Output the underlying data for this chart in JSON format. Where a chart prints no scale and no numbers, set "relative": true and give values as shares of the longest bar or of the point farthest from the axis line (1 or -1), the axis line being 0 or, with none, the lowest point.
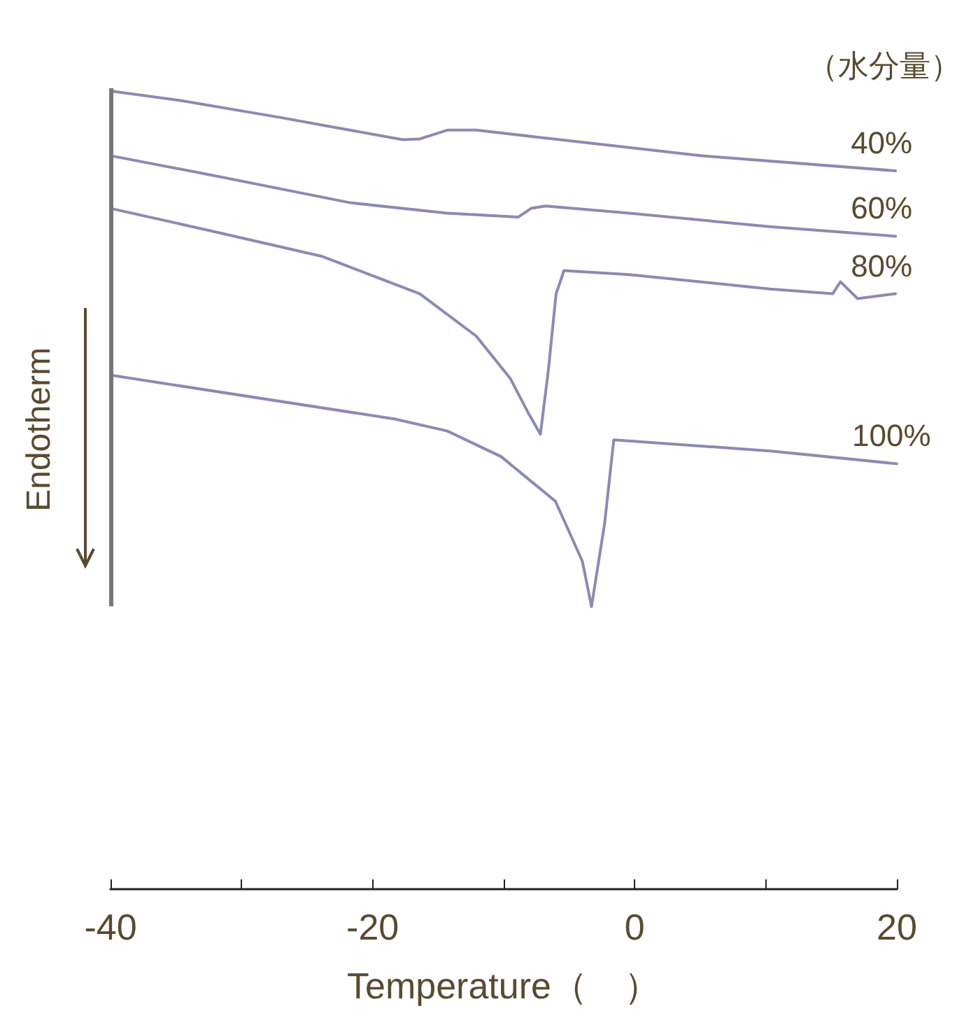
{
  "chart_data": {
    "type": "line",
    "relative": true,
    "xlabel": "Temperature（　）",
    "ylabel": "Endotherm",
    "legend_title": "（水分量）",
    "xlim": [
      -40,
      20
    ],
    "xticks": [
      -40,
      {
        "value": -30,
        "label": null
      },
      -20,
      {
        "value": -10,
        "label": null
      },
      0,
      {
        "value": 10,
        "label": null
      },
      20
    ],
    "grid": false,
    "legend": false,
    "marker": "none",
    "line_style": "solid",
    "series": [
      {
        "name": "40%",
        "color": "#8a8ab8",
        "x": [
          -40,
          -34.6,
          -27.1,
          -17.7,
          -16.4,
          -14.3,
          -12.1,
          -5.7,
          5.0,
          19.9
        ],
        "values": [
          1.0,
          0.988,
          0.967,
          0.939,
          0.94,
          0.951,
          0.951,
          0.939,
          0.919,
          0.9
        ]
      },
      {
        "name": "60%",
        "color": "#8a8ab8",
        "x": [
          -40,
          -32.4,
          -21.7,
          -14.3,
          -8.9,
          -7.9,
          -6.8,
          -0.4,
          10.3,
          19.9
        ],
        "values": [
          0.919,
          0.895,
          0.86,
          0.847,
          0.842,
          0.853,
          0.856,
          0.847,
          0.83,
          0.818
        ]
      },
      {
        "name": "80%",
        "color": "#8a8ab8",
        "x": [
          -40,
          -32.4,
          -23.9,
          -16.4,
          -12.1,
          -9.5,
          -8.1,
          -7.2,
          -6.6,
          -6.0,
          -5.4,
          -0.4,
          10.3,
          15.1,
          15.7,
          17.0,
          19.9
        ],
        "values": [
          0.853,
          0.825,
          0.793,
          0.746,
          0.693,
          0.64,
          0.596,
          0.57,
          0.649,
          0.746,
          0.775,
          0.77,
          0.752,
          0.746,
          0.761,
          0.74,
          0.746
        ]
      },
      {
        "name": "100%",
        "color": "#8a8ab8",
        "x": [
          -40,
          -18.3,
          -14.3,
          -10.2,
          -6.05,
          -4.0,
          -3.3,
          -2.3,
          -1.6,
          10.4,
          20
        ],
        "values": [
          0.644,
          0.589,
          0.574,
          0.542,
          0.486,
          0.411,
          0.354,
          0.458,
          0.563,
          0.549,
          0.533
        ]
      }
    ]
  }
}
